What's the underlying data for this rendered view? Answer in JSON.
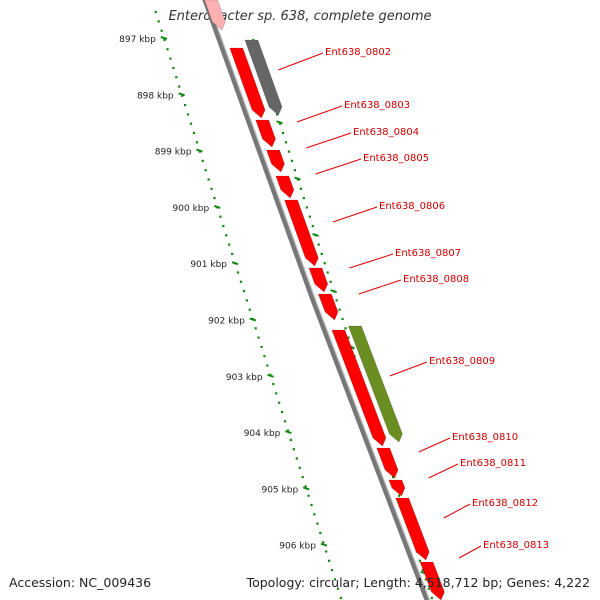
{
  "title": "Enterobacter sp. 638, complete genome",
  "footer": {
    "accession_label": "Accession:",
    "accession": "NC_009436",
    "topology_label": "Topology:",
    "topology": "circular",
    "length_label": "Length:",
    "length": "4,518,712 bp",
    "genes_label": "Genes:",
    "genes": "4,222"
  },
  "colors": {
    "gene_forward": "#ff0000",
    "gene_reverse_grey": "#666666",
    "gene_reverse_olive": "#6b8e23",
    "ruler": "#118811",
    "backbone": "#777777",
    "callout": "#dd0000"
  },
  "ruler_labels": [
    "897 kbp",
    "898 kbp",
    "899 kbp",
    "900 kbp",
    "901 kbp",
    "902 kbp",
    "903 kbp",
    "904 kbp",
    "905 kbp",
    "906 kbp"
  ],
  "genes": [
    {
      "name": "Ent638_0802",
      "strand": "reverse",
      "color": "grey"
    },
    {
      "name": "Ent638_0803",
      "strand": "forward",
      "color": "red"
    },
    {
      "name": "Ent638_0804",
      "strand": "forward",
      "color": "red"
    },
    {
      "name": "Ent638_0805",
      "strand": "forward",
      "color": "red"
    },
    {
      "name": "Ent638_0806",
      "strand": "forward",
      "color": "red"
    },
    {
      "name": "Ent638_0807",
      "strand": "forward",
      "color": "red"
    },
    {
      "name": "Ent638_0808",
      "strand": "forward",
      "color": "red"
    },
    {
      "name": "Ent638_0809",
      "strand": "reverse",
      "color": "olive"
    },
    {
      "name": "Ent638_0810",
      "strand": "forward",
      "color": "red"
    },
    {
      "name": "Ent638_0811",
      "strand": "forward",
      "color": "red"
    },
    {
      "name": "Ent638_0812",
      "strand": "forward",
      "color": "red"
    },
    {
      "name": "Ent638_0813",
      "strand": "forward",
      "color": "red"
    }
  ]
}
